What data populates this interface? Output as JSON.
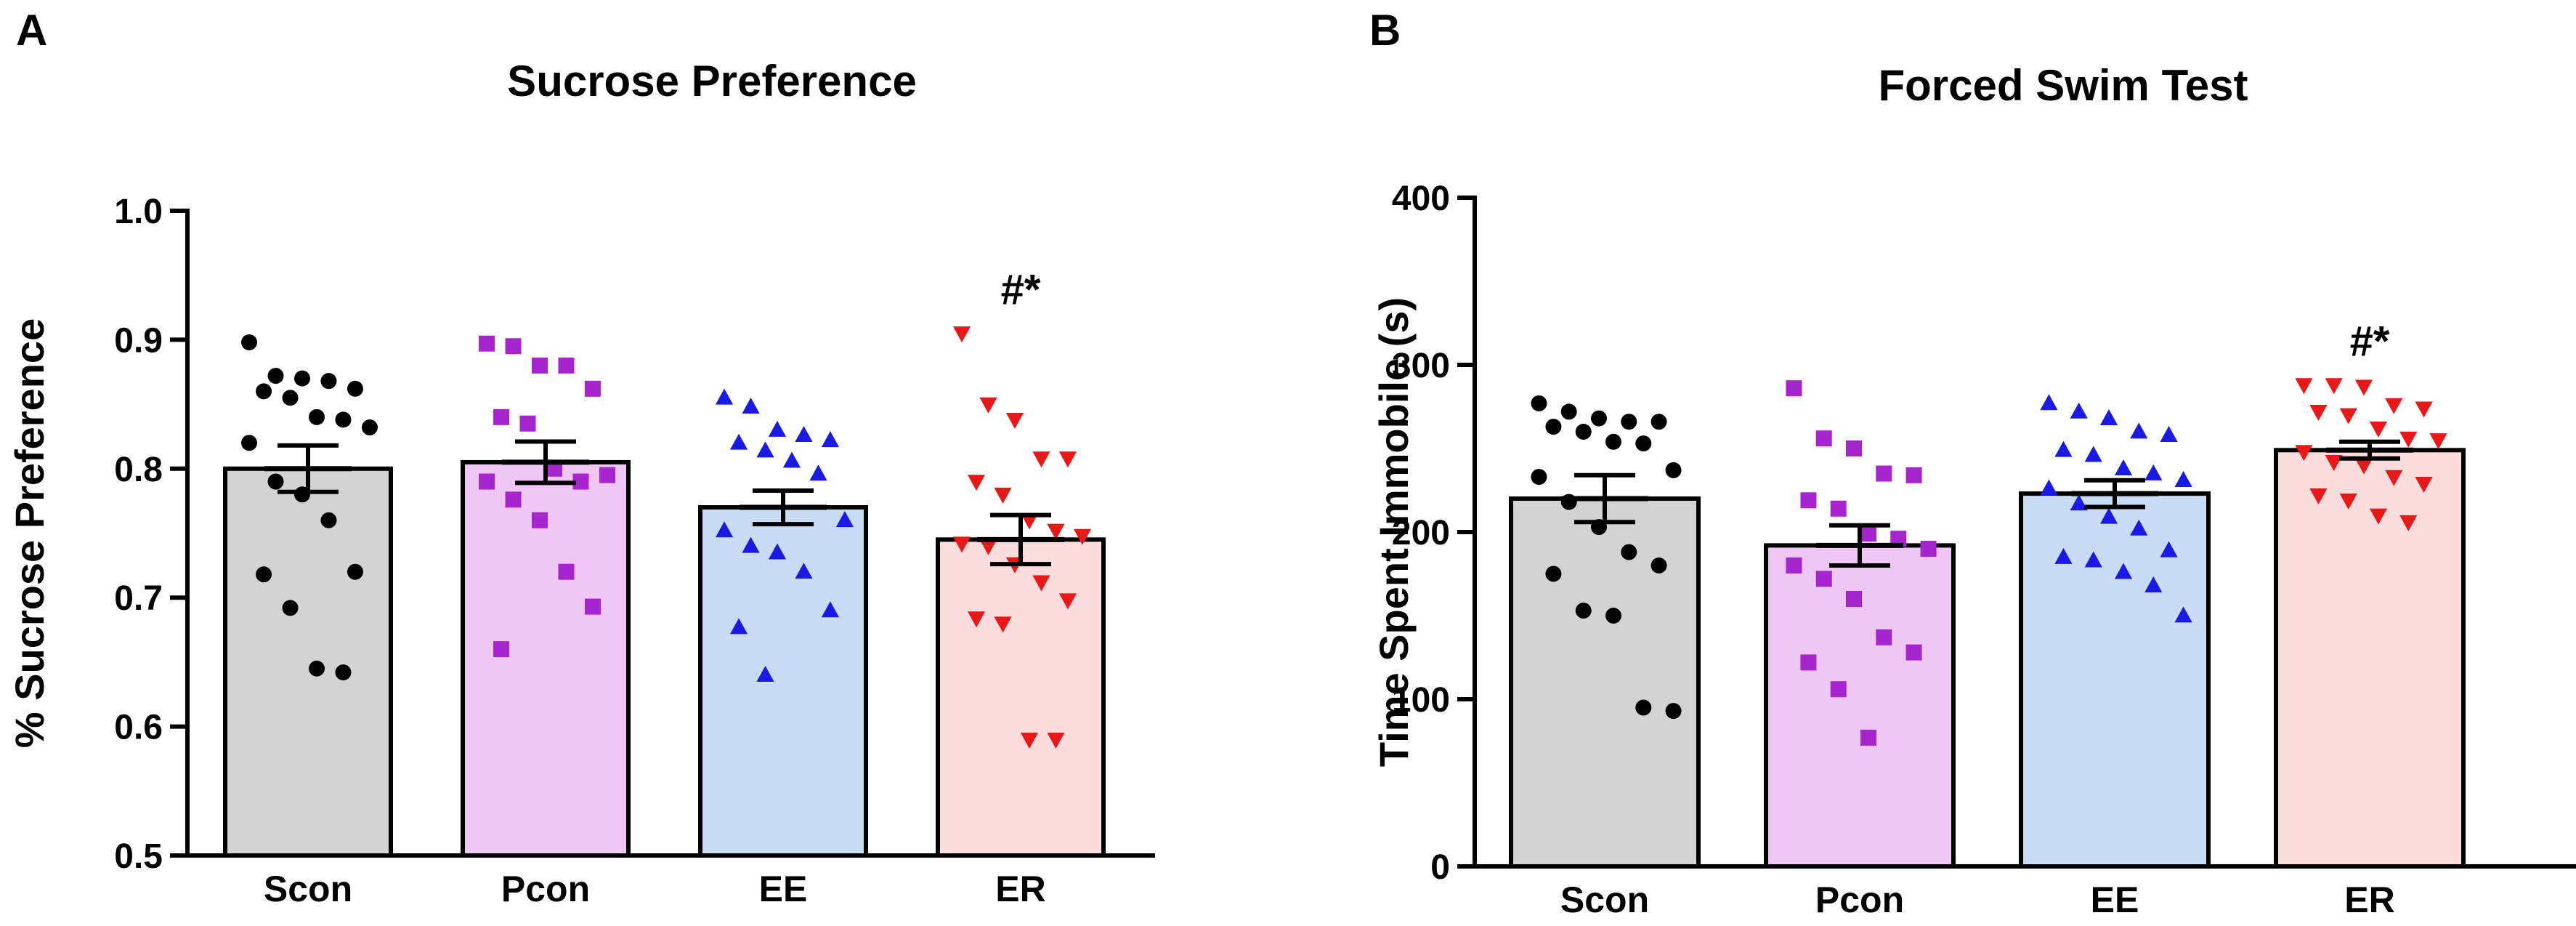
{
  "figure": {
    "colors": {
      "axis": "#000000",
      "Scon_fill": "#d3d3d3",
      "Pcon_fill": "#efc7f5",
      "EE_fill": "#c9dcf5",
      "ER_fill": "#fcdddd",
      "Scon_marker": "#000000",
      "Pcon_marker": "#a625cf",
      "EE_marker": "#1a1ae6",
      "ER_marker": "#e81818"
    }
  },
  "chart_data": [
    {
      "panel": "A",
      "type": "bar",
      "title": "Sucrose Preference",
      "xlabel": "",
      "ylabel": "% Sucrose Preference",
      "ylim": [
        0.5,
        1.0
      ],
      "yticks": [
        "0.5",
        "0.6",
        "0.7",
        "0.8",
        "0.9",
        "1.0"
      ],
      "ytick_values": [
        0.5,
        0.6,
        0.7,
        0.8,
        0.9,
        1.0
      ],
      "categories": [
        "Scon",
        "Pcon",
        "EE",
        "ER"
      ],
      "means": [
        0.8,
        0.805,
        0.77,
        0.745
      ],
      "sem": [
        0.018,
        0.016,
        0.013,
        0.019
      ],
      "markers": [
        "circle",
        "square",
        "triangle-up",
        "triangle-down"
      ],
      "annotations": [
        {
          "category": "ER",
          "text": "#*"
        }
      ],
      "points": [
        [
          0.898,
          0.872,
          0.87,
          0.868,
          0.862,
          0.86,
          0.855,
          0.84,
          0.838,
          0.832,
          0.82,
          0.79,
          0.78,
          0.76,
          0.72,
          0.718,
          0.692,
          0.645,
          0.642
        ],
        [
          0.897,
          0.895,
          0.88,
          0.88,
          0.862,
          0.84,
          0.835,
          0.8,
          0.79,
          0.795,
          0.79,
          0.776,
          0.76,
          0.72,
          0.693,
          0.66
        ],
        [
          0.855,
          0.848,
          0.83,
          0.826,
          0.822,
          0.82,
          0.814,
          0.806,
          0.796,
          0.76,
          0.752,
          0.74,
          0.735,
          0.72,
          0.69,
          0.677,
          0.64
        ],
        [
          0.905,
          0.85,
          0.838,
          0.808,
          0.808,
          0.79,
          0.78,
          0.76,
          0.752,
          0.748,
          0.742,
          0.74,
          0.726,
          0.712,
          0.698,
          0.684,
          0.68,
          0.59,
          0.59
        ]
      ]
    },
    {
      "panel": "B",
      "type": "bar",
      "title": "Forced Swim Test",
      "xlabel": "",
      "ylabel": "Time Spent Immobile (s)",
      "ylim": [
        0,
        400
      ],
      "yticks": [
        "0",
        "100",
        "200",
        "300",
        "400"
      ],
      "ytick_values": [
        0,
        100,
        200,
        300,
        400
      ],
      "categories": [
        "Scon",
        "Pcon",
        "EE",
        "ER"
      ],
      "means": [
        220,
        192,
        223,
        249
      ],
      "sem": [
        14,
        12,
        8,
        5
      ],
      "markers": [
        "circle",
        "square",
        "triangle-up",
        "triangle-down"
      ],
      "annotations": [
        {
          "category": "ER",
          "text": "#*"
        }
      ],
      "points": [
        [
          277,
          272,
          268,
          266,
          266,
          263,
          260,
          254,
          253,
          237,
          233,
          218,
          203,
          188,
          180,
          175,
          153,
          150,
          95,
          93
        ],
        [
          286,
          256,
          250,
          235,
          234,
          219,
          214,
          199,
          196,
          190,
          180,
          172,
          160,
          137,
          128,
          122,
          106,
          77
        ],
        [
          277,
          272,
          268,
          260,
          258,
          249,
          246,
          238,
          235,
          231,
          226,
          217,
          209,
          202,
          189,
          185,
          183,
          176,
          168,
          150
        ],
        [
          288,
          288,
          287,
          276,
          274,
          272,
          270,
          262,
          256,
          255,
          248,
          242,
          240,
          233,
          229,
          222,
          219,
          210,
          206
        ]
      ]
    }
  ],
  "panels": {
    "A": {
      "letter": "A"
    },
    "B": {
      "letter": "B"
    }
  }
}
